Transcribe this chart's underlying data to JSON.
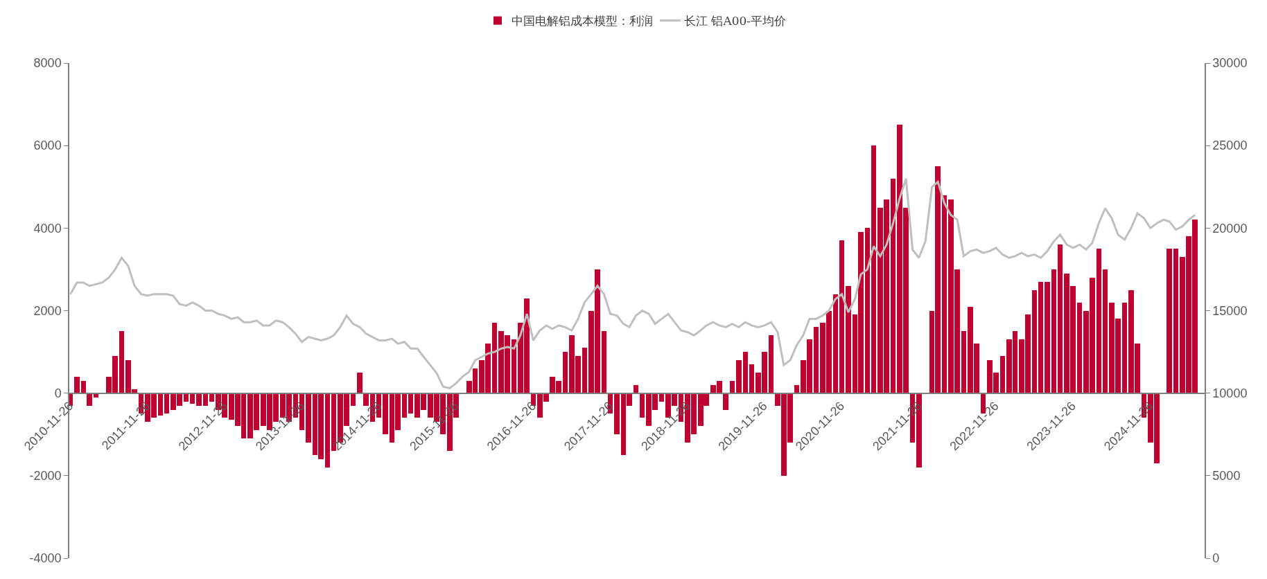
{
  "chart_data": {
    "type": "bar",
    "legend": "top",
    "grid": false,
    "x": [
      "2010-12",
      "2011-01",
      "2011-02",
      "2011-03",
      "2011-04",
      "2011-05",
      "2011-06",
      "2011-07",
      "2011-08",
      "2011-09",
      "2011-10",
      "2011-11",
      "2011-12",
      "2012-01",
      "2012-02",
      "2012-03",
      "2012-04",
      "2012-05",
      "2012-06",
      "2012-07",
      "2012-08",
      "2012-09",
      "2012-10",
      "2012-11",
      "2012-12",
      "2013-01",
      "2013-02",
      "2013-03",
      "2013-04",
      "2013-05",
      "2013-06",
      "2013-07",
      "2013-08",
      "2013-09",
      "2013-10",
      "2013-11",
      "2013-12",
      "2014-01",
      "2014-02",
      "2014-03",
      "2014-04",
      "2014-05",
      "2014-06",
      "2014-07",
      "2014-08",
      "2014-09",
      "2014-10",
      "2014-11",
      "2014-12",
      "2015-01",
      "2015-02",
      "2015-03",
      "2015-04",
      "2015-05",
      "2015-06",
      "2015-07",
      "2015-08",
      "2015-09",
      "2015-10",
      "2015-11",
      "2015-12",
      "2016-01",
      "2016-02",
      "2016-03",
      "2016-04",
      "2016-05",
      "2016-06",
      "2016-07",
      "2016-08",
      "2016-09",
      "2016-10",
      "2016-11",
      "2016-12",
      "2017-01",
      "2017-02",
      "2017-03",
      "2017-04",
      "2017-05",
      "2017-06",
      "2017-07",
      "2017-08",
      "2017-09",
      "2017-10",
      "2017-11",
      "2017-12",
      "2018-01",
      "2018-02",
      "2018-03",
      "2018-04",
      "2018-05",
      "2018-06",
      "2018-07",
      "2018-08",
      "2018-09",
      "2018-10",
      "2018-11",
      "2018-12",
      "2019-01",
      "2019-02",
      "2019-03",
      "2019-04",
      "2019-05",
      "2019-06",
      "2019-07",
      "2019-08",
      "2019-09",
      "2019-10",
      "2019-11",
      "2019-12",
      "2020-01",
      "2020-02",
      "2020-03",
      "2020-04",
      "2020-05",
      "2020-06",
      "2020-07",
      "2020-08",
      "2020-09",
      "2020-10",
      "2020-11",
      "2020-12",
      "2021-01",
      "2021-02",
      "2021-03",
      "2021-04",
      "2021-05",
      "2021-06",
      "2021-07",
      "2021-08",
      "2021-09",
      "2021-10",
      "2021-11",
      "2021-12",
      "2022-01",
      "2022-02",
      "2022-03",
      "2022-04",
      "2022-05",
      "2022-06",
      "2022-07",
      "2022-08",
      "2022-09",
      "2022-10",
      "2022-11",
      "2022-12",
      "2023-01",
      "2023-02",
      "2023-03",
      "2023-04",
      "2023-05",
      "2023-06",
      "2023-07",
      "2023-08",
      "2023-09",
      "2023-10",
      "2023-11",
      "2023-12",
      "2024-01",
      "2024-02",
      "2024-03",
      "2024-04",
      "2024-05",
      "2024-06",
      "2024-07",
      "2024-08",
      "2024-09",
      "2024-10",
      "2024-11",
      "2024-12",
      "2025-01",
      "2025-02",
      "2025-03",
      "2025-04",
      "2025-05",
      "2025-06",
      "2025-07"
    ],
    "xlim": [
      "2010-11-26",
      "2025-08-15"
    ],
    "xticks": [
      "2010-11-26",
      "2011-11-26",
      "2012-11-26",
      "2013-11-26",
      "2014-11-26",
      "2015-11-26",
      "2016-11-26",
      "2017-11-26",
      "2018-11-26",
      "2019-11-26",
      "2020-11-26",
      "2021-11-26",
      "2022-11-26",
      "2023-11-26",
      "2024-11-26"
    ],
    "ylim": [
      -4000,
      8000
    ],
    "yticks": [
      -4000,
      -2000,
      0,
      2000,
      4000,
      6000,
      8000
    ],
    "y2lim": [
      0,
      30000
    ],
    "y2ticks": [
      0,
      5000,
      10000,
      15000,
      20000,
      25000,
      30000
    ],
    "series": [
      {
        "name": "中国电解铝成本模型：利润",
        "color": "#c00030",
        "values": [
          -300,
          400,
          300,
          -300,
          -100,
          0,
          400,
          900,
          1500,
          800,
          100,
          -500,
          -700,
          -600,
          -550,
          -500,
          -400,
          -300,
          -200,
          -250,
          -300,
          -300,
          -200,
          -400,
          -600,
          -650,
          -800,
          -1100,
          -1100,
          -900,
          -800,
          -900,
          -700,
          -600,
          -700,
          -600,
          -900,
          -1200,
          -1500,
          -1600,
          -1800,
          -1400,
          -1200,
          -800,
          -300,
          500,
          -300,
          -700,
          -600,
          -1000,
          -1200,
          -900,
          -600,
          -500,
          -600,
          -400,
          -600,
          -700,
          -1000,
          -1400,
          -600,
          0,
          300,
          600,
          800,
          1200,
          1700,
          1500,
          1400,
          1300,
          1700,
          2300,
          -300,
          -600,
          -200,
          400,
          300,
          1000,
          1400,
          900,
          1100,
          2000,
          3000,
          1500,
          -500,
          -1000,
          -1500,
          -300,
          200,
          -600,
          -800,
          -400,
          -200,
          -600,
          -300,
          -700,
          -1200,
          -1000,
          -800,
          -300,
          200,
          300,
          -400,
          300,
          800,
          1000,
          700,
          500,
          1000,
          1400,
          -300,
          -2000,
          -1200,
          200,
          800,
          1300,
          1600,
          1700,
          2000,
          2400,
          3700,
          2600,
          1900,
          3900,
          4000,
          6000,
          4500,
          4700,
          5200,
          6500,
          4500,
          -1200,
          -1800,
          0,
          2000,
          5500,
          4800,
          4700,
          3000,
          1500,
          2100,
          1200,
          -500,
          800,
          500,
          900,
          1300,
          1500,
          1300,
          1900,
          2500,
          2700,
          2700,
          3000,
          3600,
          2900,
          2600,
          2200,
          2000,
          2800,
          3500,
          3000,
          2200,
          1800,
          2200,
          2500,
          1200,
          -600,
          -1200,
          -1700,
          0,
          3500,
          3500,
          3300,
          3800,
          4200
        ]
      },
      {
        "name": "长江 铝A00-平均价",
        "type": "line",
        "axis": "y2",
        "color": "#bfbfbf",
        "values": [
          16000,
          16700,
          16700,
          16500,
          16600,
          16700,
          17000,
          17500,
          18200,
          17700,
          16500,
          16000,
          15900,
          16000,
          16000,
          16000,
          15900,
          15400,
          15300,
          15500,
          15300,
          15000,
          15000,
          14800,
          14700,
          14500,
          14600,
          14300,
          14300,
          14400,
          14100,
          14100,
          14400,
          14300,
          14000,
          13600,
          13100,
          13400,
          13300,
          13200,
          13300,
          13500,
          14000,
          14700,
          14200,
          14000,
          13600,
          13400,
          13200,
          13200,
          13300,
          13000,
          13100,
          12700,
          12700,
          12200,
          11700,
          11200,
          10400,
          10300,
          10600,
          11000,
          11300,
          12000,
          12200,
          12400,
          12500,
          12700,
          12800,
          12700,
          13500,
          14800,
          13200,
          13800,
          14100,
          13900,
          14100,
          14000,
          13800,
          14500,
          15500,
          16000,
          16500,
          16000,
          14800,
          14700,
          14200,
          14000,
          14700,
          15000,
          14800,
          14200,
          14500,
          14800,
          14300,
          13800,
          13700,
          13500,
          13800,
          14100,
          14300,
          14100,
          14000,
          14200,
          14000,
          14300,
          14100,
          14000,
          14100,
          14300,
          13700,
          11700,
          12000,
          12900,
          13500,
          14500,
          14500,
          14700,
          15000,
          15700,
          16000,
          14900,
          15700,
          17200,
          17500,
          18900,
          18300,
          19000,
          20300,
          21800,
          23000,
          18700,
          18200,
          19200,
          22500,
          22800,
          21500,
          20800,
          20500,
          18300,
          18600,
          18700,
          18500,
          18600,
          18800,
          18400,
          18200,
          18300,
          18500,
          18300,
          18400,
          18200,
          18600,
          19200,
          19600,
          19000,
          18800,
          19000,
          18700,
          19100,
          20300,
          21200,
          20600,
          19600,
          19300,
          20000,
          20900,
          20600,
          20000,
          20300,
          20500,
          20400,
          19900,
          20100,
          20500,
          20800
        ]
      }
    ]
  }
}
